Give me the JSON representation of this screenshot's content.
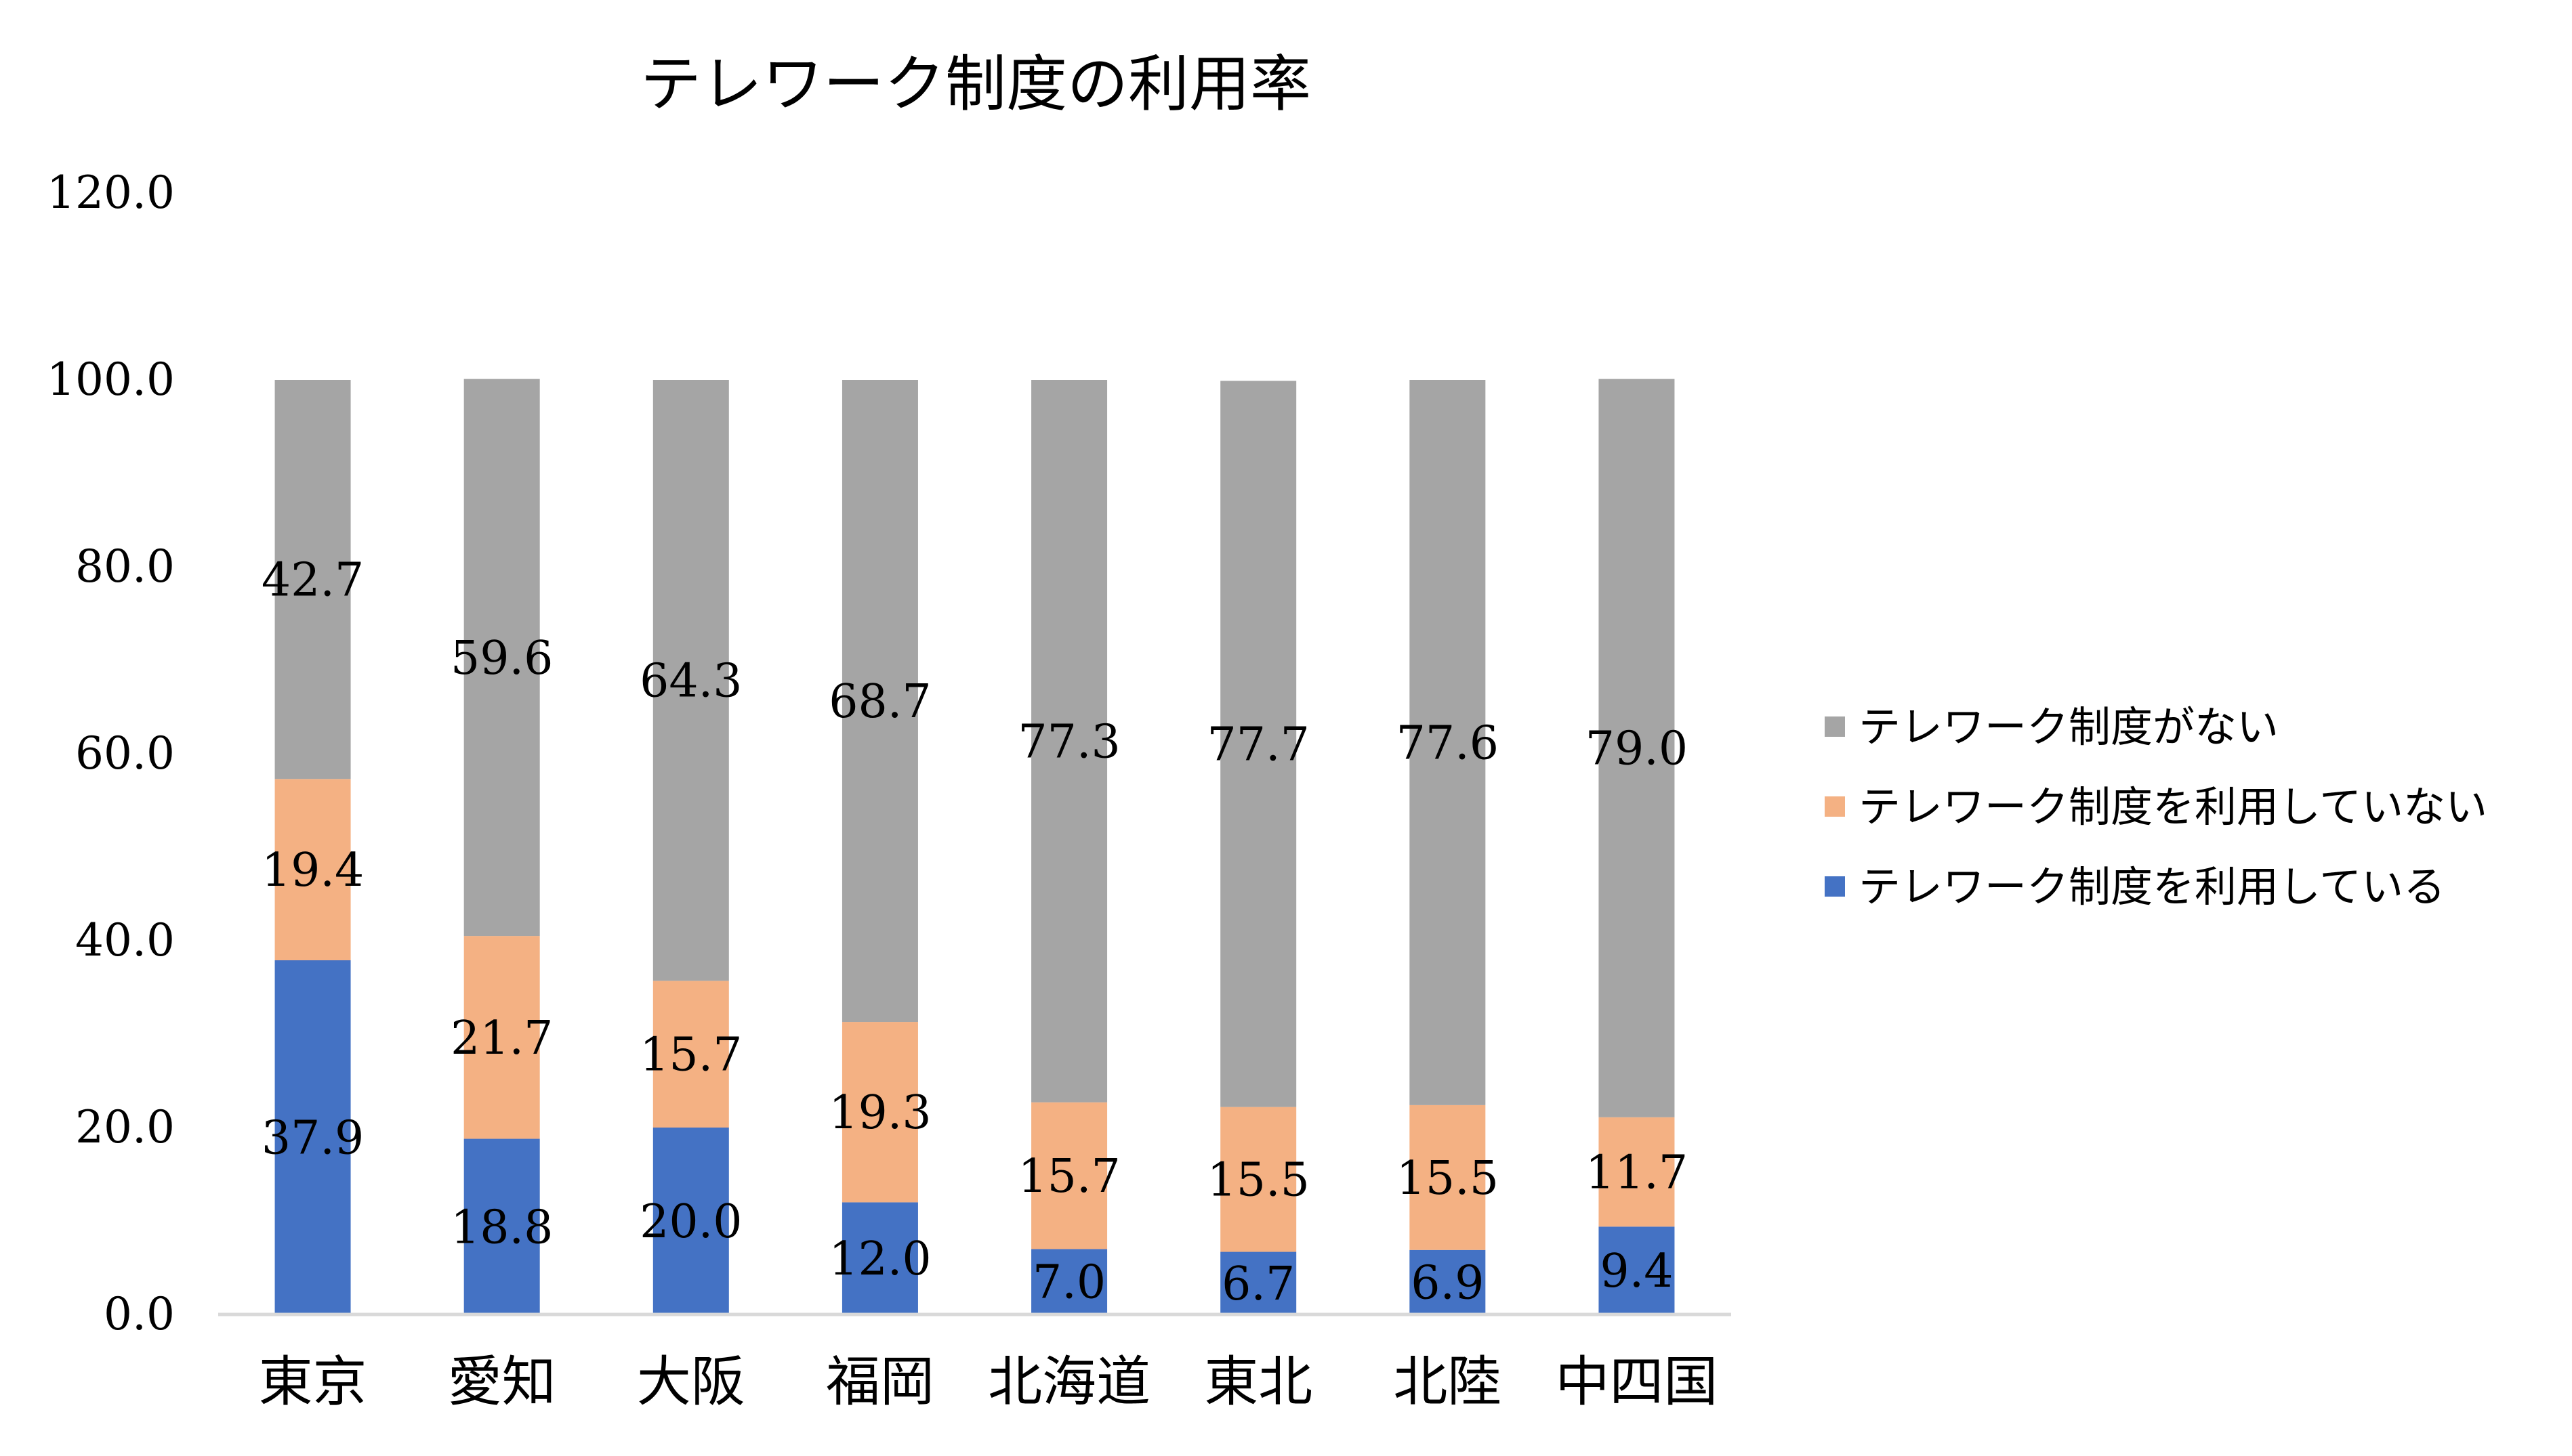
{
  "chart_data": {
    "type": "bar",
    "stacked": true,
    "title": "テレワーク制度の利用率",
    "categories": [
      "東京",
      "愛知",
      "大阪",
      "福岡",
      "北海道",
      "東北",
      "北陸",
      "中四国"
    ],
    "series": [
      {
        "name": "テレワーク制度を利用している",
        "color": "#4472C4",
        "values": [
          37.9,
          18.8,
          20.0,
          12.0,
          7.0,
          6.7,
          6.9,
          9.4
        ]
      },
      {
        "name": "テレワーク制度を利用していない",
        "color": "#F4B183",
        "values": [
          19.4,
          21.7,
          15.7,
          19.3,
          15.7,
          15.5,
          15.5,
          11.7
        ]
      },
      {
        "name": "テレワーク制度がない",
        "color": "#A5A5A5",
        "values": [
          42.7,
          59.6,
          64.3,
          68.7,
          77.3,
          77.7,
          77.6,
          79.0
        ]
      }
    ],
    "ylim": [
      0,
      120
    ],
    "yticks": [
      "0.0",
      "20.0",
      "40.0",
      "60.0",
      "80.0",
      "100.0",
      "120.0"
    ],
    "legend_position": "right",
    "legend_order": [
      "テレワーク制度がない",
      "テレワーク制度を利用していない",
      "テレワーク制度を利用している"
    ],
    "grid": false,
    "data_labels": true
  }
}
